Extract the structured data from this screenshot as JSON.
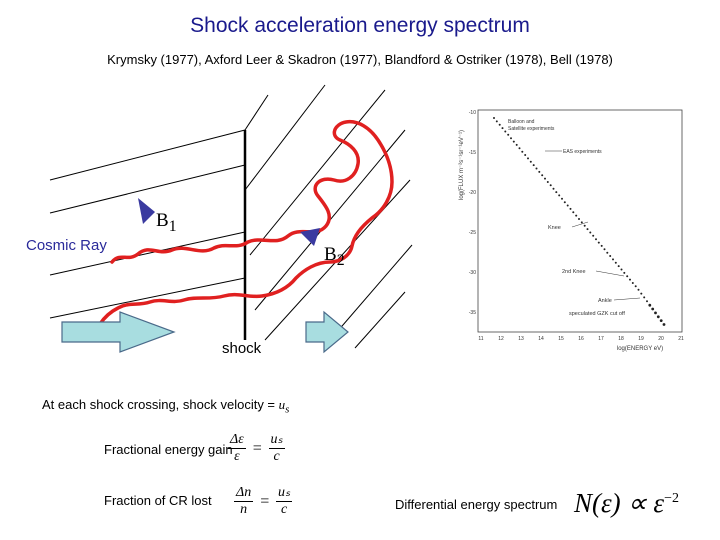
{
  "title": "Shock acceleration energy spectrum",
  "references": "Krymsky (1977), Axford Leer & Skadron (1977), Blandford & Ostriker (1978), Bell (1978)",
  "labels": {
    "cosmic_ray": "Cosmic Ray",
    "b1": "B",
    "b1_sub": "1",
    "b2": "B",
    "b2_sub": "2",
    "shock": "shock"
  },
  "text": {
    "crossing": "At each shock crossing, shock velocity = ",
    "crossing_var": "u",
    "crossing_sub": "s",
    "fractional_gain": "Fractional energy gain",
    "fraction_lost": "Fraction of CR lost",
    "differential": "Differential energy spectrum"
  },
  "equations": {
    "gain_num": "Δε",
    "gain_den": "ε",
    "gain_eq": "=",
    "gain_rhs_num": "uₛ",
    "gain_rhs_den": "c",
    "lost_num": "Δn",
    "lost_den": "n",
    "lost_eq": "=",
    "lost_rhs_num": "uₛ",
    "lost_rhs_den": "c",
    "spectrum_lhs": "N(ε) ∝ ε",
    "spectrum_exp": "−2"
  },
  "inset_chart": {
    "ylabel": "log(FLUX m⁻²s⁻¹sr⁻¹eV⁻¹)",
    "xlabel": "log(ENERGY eV)",
    "x_ticks": [
      "11",
      "12",
      "13",
      "14",
      "15",
      "16",
      "17",
      "18",
      "19",
      "20",
      "21"
    ],
    "y_ticks": [
      "-10",
      "-15",
      "-20",
      "-25",
      "-30",
      "-35"
    ],
    "legend": [
      "Balloon and",
      "Satellite experiments",
      "EAS experiments"
    ],
    "annotations": [
      "Knee",
      "2nd Knee",
      "Ankle",
      "speculated GZK cut off"
    ]
  },
  "colors": {
    "title": "#1a1a8c",
    "cosmic_ray": "#2a2a9a",
    "path": "#e02020",
    "arrow_fill": "#a8dde0",
    "arrow_stroke": "#4a6a8a",
    "field_marker": "#3a3aa0"
  }
}
